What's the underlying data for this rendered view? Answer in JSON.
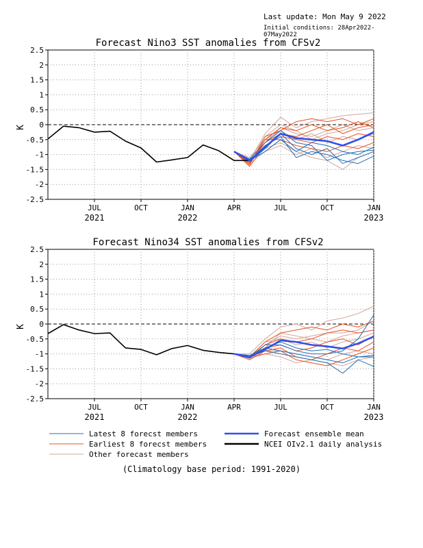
{
  "header": {
    "last_update": "Last update: Mon May 9 2022",
    "initial_conditions": "Initial conditions: 28Apr2022-07May2022"
  },
  "footer": "(Climatology base period: 1991-2020)",
  "legend": [
    {
      "label": "Latest 8 forecst members",
      "color": "#1f6fb5"
    },
    {
      "label": "Forecast ensemble mean",
      "color": "#3050e8"
    },
    {
      "label": "Earliest 8 forecst members",
      "color": "#e8501e"
    },
    {
      "label": "NCEI OIv2.1 daily analysis",
      "color": "#000000"
    },
    {
      "label": "Other forecast members",
      "color": "#d4a59a"
    }
  ],
  "colors": {
    "observed": "#000000",
    "mean": "#3050e8",
    "latest": "#1f6fb5",
    "earliest": "#e8501e",
    "other": "#d4a59a"
  },
  "chart_data": [
    {
      "type": "line",
      "title": "Forecast Nino3 SST anomalies from CFSv2",
      "ylabel": "K",
      "ylim": [
        -2.5,
        2.5
      ],
      "yticks": [
        "2.5",
        "2",
        "1.5",
        "1",
        "0.5",
        "0",
        "-0.5",
        "-1",
        "-1.5",
        "-2",
        "-2.5"
      ],
      "xlim": [
        0,
        21
      ],
      "xticks": [
        {
          "pos": 3,
          "month": "JUL",
          "year": "2021"
        },
        {
          "pos": 6,
          "month": "OCT",
          "year": ""
        },
        {
          "pos": 9,
          "month": "JAN",
          "year": "2022"
        },
        {
          "pos": 12,
          "month": "APR",
          "year": ""
        },
        {
          "pos": 15,
          "month": "JUL",
          "year": ""
        },
        {
          "pos": 18,
          "month": "OCT",
          "year": ""
        },
        {
          "pos": 21,
          "month": "JAN",
          "year": "2023"
        }
      ],
      "grid": true,
      "observed": {
        "x": [
          0,
          1,
          2,
          3,
          4,
          5,
          6,
          7,
          8,
          9,
          10,
          11,
          12,
          13
        ],
        "y": [
          -0.48,
          -0.05,
          -0.1,
          -0.25,
          -0.22,
          -0.55,
          -0.78,
          -1.25,
          -1.18,
          -1.1,
          -0.68,
          -0.87,
          -1.2,
          -1.2
        ]
      },
      "mean": {
        "x": [
          12,
          13,
          14,
          15,
          16,
          17,
          18,
          19,
          20,
          21
        ],
        "y": [
          -0.9,
          -1.2,
          -0.75,
          -0.3,
          -0.45,
          -0.5,
          -0.55,
          -0.7,
          -0.5,
          -0.25
        ]
      },
      "members": {
        "x": [
          12,
          13,
          14,
          15,
          16,
          17,
          18,
          19,
          20,
          21
        ],
        "latest": [
          [
            -0.9,
            -1.2,
            -0.7,
            -0.4,
            -1.1,
            -0.9,
            -1.0,
            -1.2,
            -1.3,
            -1.05
          ],
          [
            -0.9,
            -1.25,
            -0.8,
            -0.3,
            -0.8,
            -1.0,
            -0.8,
            -1.3,
            -1.1,
            -0.9
          ],
          [
            -0.9,
            -1.15,
            -0.6,
            -0.2,
            -0.6,
            -0.7,
            -1.2,
            -1.0,
            -0.9,
            -0.85
          ],
          [
            -0.9,
            -1.2,
            -0.9,
            -0.5,
            -0.9,
            -0.6,
            -0.7,
            -0.9,
            -1.0,
            -0.75
          ]
        ],
        "earliest": [
          [
            -0.9,
            -1.35,
            -0.4,
            -0.2,
            0.1,
            0.2,
            0.1,
            0.2,
            0.0,
            0.2
          ],
          [
            -0.9,
            -1.3,
            -0.5,
            -0.1,
            -0.2,
            0.0,
            -0.2,
            -0.1,
            0.1,
            -0.1
          ],
          [
            -0.9,
            -1.3,
            -0.6,
            -0.3,
            -0.4,
            -0.2,
            0.0,
            -0.3,
            -0.1,
            0.0
          ],
          [
            -0.9,
            -1.4,
            -0.7,
            -0.4,
            -0.5,
            -0.6,
            -0.4,
            -0.5,
            -0.3,
            -0.4
          ],
          [
            -0.9,
            -1.3,
            -0.5,
            -0.5,
            -0.7,
            -0.8,
            -0.9,
            -0.7,
            -0.8,
            -0.6
          ]
        ],
        "other": [
          [
            -0.9,
            -1.2,
            -0.3,
            0.25,
            -0.1,
            0.1,
            0.2,
            0.3,
            0.35,
            0.4
          ],
          [
            -0.9,
            -1.25,
            -0.6,
            -0.1,
            -0.3,
            -0.4,
            -0.2,
            0.0,
            -0.2,
            -0.1
          ],
          [
            -0.9,
            -1.2,
            -0.8,
            -0.6,
            -0.9,
            -1.1,
            -1.2,
            -1.5,
            -1.1,
            -0.9
          ],
          [
            -0.9,
            -1.1,
            -0.5,
            -0.2,
            -0.5,
            -0.3,
            -0.6,
            -0.4,
            -0.5,
            -0.3
          ],
          [
            -0.9,
            -1.3,
            -0.9,
            -0.7,
            -1.0,
            -0.8,
            -1.1,
            -0.9,
            -0.7,
            -0.8
          ],
          [
            -0.9,
            -1.2,
            -0.4,
            0.0,
            -0.2,
            -0.5,
            -0.3,
            -0.2,
            0.0,
            0.1
          ]
        ]
      }
    },
    {
      "type": "line",
      "title": "Forecast Nino34 SST anomalies from CFSv2",
      "ylabel": "K",
      "ylim": [
        -2.5,
        2.5
      ],
      "yticks": [
        "2.5",
        "2",
        "1.5",
        "1",
        "0.5",
        "0",
        "-0.5",
        "-1",
        "-1.5",
        "-2",
        "-2.5"
      ],
      "xlim": [
        0,
        21
      ],
      "xticks": [
        {
          "pos": 3,
          "month": "JUL",
          "year": "2021"
        },
        {
          "pos": 6,
          "month": "OCT",
          "year": ""
        },
        {
          "pos": 9,
          "month": "JAN",
          "year": "2022"
        },
        {
          "pos": 12,
          "month": "APR",
          "year": ""
        },
        {
          "pos": 15,
          "month": "JUL",
          "year": ""
        },
        {
          "pos": 18,
          "month": "OCT",
          "year": ""
        },
        {
          "pos": 21,
          "month": "JAN",
          "year": "2023"
        }
      ],
      "grid": true,
      "observed": {
        "x": [
          0,
          1,
          2,
          3,
          4,
          5,
          6,
          7,
          8,
          9,
          10,
          11,
          12,
          13
        ],
        "y": [
          -0.32,
          -0.02,
          -0.2,
          -0.32,
          -0.3,
          -0.8,
          -0.85,
          -1.03,
          -0.82,
          -0.72,
          -0.88,
          -0.95,
          -1.0,
          -1.1
        ]
      },
      "mean": {
        "x": [
          12,
          13,
          14,
          15,
          16,
          17,
          18,
          19,
          20,
          21
        ],
        "y": [
          -1.0,
          -1.1,
          -0.85,
          -0.55,
          -0.6,
          -0.7,
          -0.75,
          -0.82,
          -0.65,
          -0.42
        ]
      },
      "members": {
        "x": [
          12,
          13,
          14,
          15,
          16,
          17,
          18,
          19,
          20,
          21
        ],
        "latest": [
          [
            -1.0,
            -1.1,
            -0.9,
            -1.0,
            -1.1,
            -1.2,
            -1.3,
            -1.65,
            -1.2,
            -1.42
          ],
          [
            -1.0,
            -1.15,
            -0.8,
            -0.9,
            -1.0,
            -1.1,
            -1.2,
            -1.3,
            -1.1,
            -1.1
          ],
          [
            -1.0,
            -1.1,
            -0.7,
            -0.7,
            -0.9,
            -1.0,
            -1.0,
            -0.9,
            -0.5,
            0.3
          ],
          [
            -1.0,
            -1.05,
            -0.8,
            -0.6,
            -0.8,
            -0.9,
            -0.85,
            -1.0,
            -1.1,
            -1.05
          ]
        ],
        "earliest": [
          [
            -1.0,
            -1.1,
            -0.6,
            -0.3,
            -0.2,
            -0.1,
            -0.2,
            0.0,
            -0.1,
            0.1
          ],
          [
            -1.0,
            -1.15,
            -0.7,
            -0.5,
            -0.6,
            -0.5,
            -0.3,
            -0.2,
            -0.3,
            -0.2
          ],
          [
            -1.0,
            -1.1,
            -0.8,
            -0.7,
            -0.9,
            -0.8,
            -0.6,
            -0.5,
            -0.7,
            -0.4
          ],
          [
            -1.0,
            -1.2,
            -0.9,
            -0.8,
            -1.1,
            -1.2,
            -1.0,
            -0.8,
            -0.9,
            -0.6
          ],
          [
            -1.0,
            -1.1,
            -1.0,
            -0.9,
            -1.2,
            -1.3,
            -1.4,
            -1.2,
            -1.0,
            -0.8
          ]
        ],
        "other": [
          [
            -1.0,
            -1.0,
            -0.5,
            -0.1,
            0.0,
            -0.2,
            0.1,
            0.2,
            0.35,
            0.6
          ],
          [
            -1.0,
            -1.1,
            -0.7,
            -0.4,
            -0.5,
            -0.4,
            -0.3,
            -0.3,
            -0.2,
            0.1
          ],
          [
            -1.0,
            -1.05,
            -0.9,
            -0.9,
            -1.0,
            -1.1,
            -1.2,
            -1.0,
            -0.9,
            -1.0
          ],
          [
            -1.0,
            -1.1,
            -0.6,
            -0.5,
            -0.7,
            -0.6,
            -0.8,
            -0.6,
            -0.5,
            -0.3
          ],
          [
            -1.0,
            -1.15,
            -1.0,
            -1.1,
            -1.3,
            -1.2,
            -1.3,
            -1.4,
            -1.2,
            -1.1
          ],
          [
            -1.0,
            -1.1,
            -0.8,
            -0.3,
            -0.4,
            -0.5,
            -0.6,
            -0.4,
            -0.3,
            -0.2
          ]
        ]
      }
    }
  ]
}
